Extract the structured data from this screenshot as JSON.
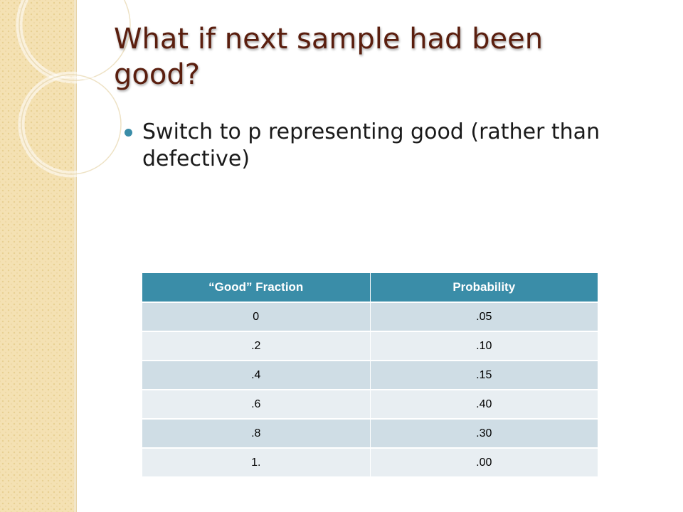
{
  "slide": {
    "title": "What if next sample had been good?",
    "bullets": [
      "Switch to p representing good (rather than defective)"
    ]
  },
  "table": {
    "headers": [
      "“Good” Fraction",
      "Probability"
    ],
    "rows": [
      [
        "0",
        ".05"
      ],
      [
        ".2",
        ".10"
      ],
      [
        ".4",
        ".15"
      ],
      [
        ".6",
        ".40"
      ],
      [
        ".8",
        ".30"
      ],
      [
        "1.",
        ".00"
      ]
    ]
  },
  "colors": {
    "title": "#5a1e0e",
    "accent": "#3a8da8",
    "row_dark": "#cfdde5",
    "row_light": "#e8eef2",
    "sidebar": "#f4e1b3"
  }
}
